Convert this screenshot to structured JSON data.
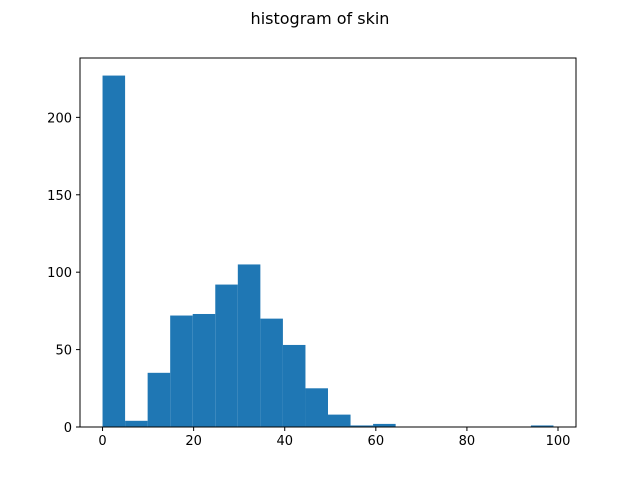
{
  "chart_data": {
    "type": "bar",
    "title": "histogram of skin",
    "xlabel": "",
    "ylabel": "",
    "xlim": [
      -4.95,
      103.95
    ],
    "ylim": [
      0,
      238.35
    ],
    "xticks": [
      0,
      20,
      40,
      60,
      80,
      100
    ],
    "yticks": [
      0,
      50,
      100,
      150,
      200
    ],
    "bin_edges": [
      0,
      4.95,
      9.9,
      14.85,
      19.8,
      24.75,
      29.7,
      34.65,
      39.6,
      44.55,
      49.5,
      54.45,
      59.4,
      64.35,
      69.3,
      74.25,
      79.2,
      84.15,
      89.1,
      94.05,
      99
    ],
    "counts": [
      227,
      4,
      35,
      72,
      73,
      92,
      105,
      70,
      53,
      25,
      8,
      1,
      2,
      0,
      0,
      0,
      0,
      0,
      0,
      1
    ],
    "bar_color": "#1f77b4",
    "grid": false
  }
}
